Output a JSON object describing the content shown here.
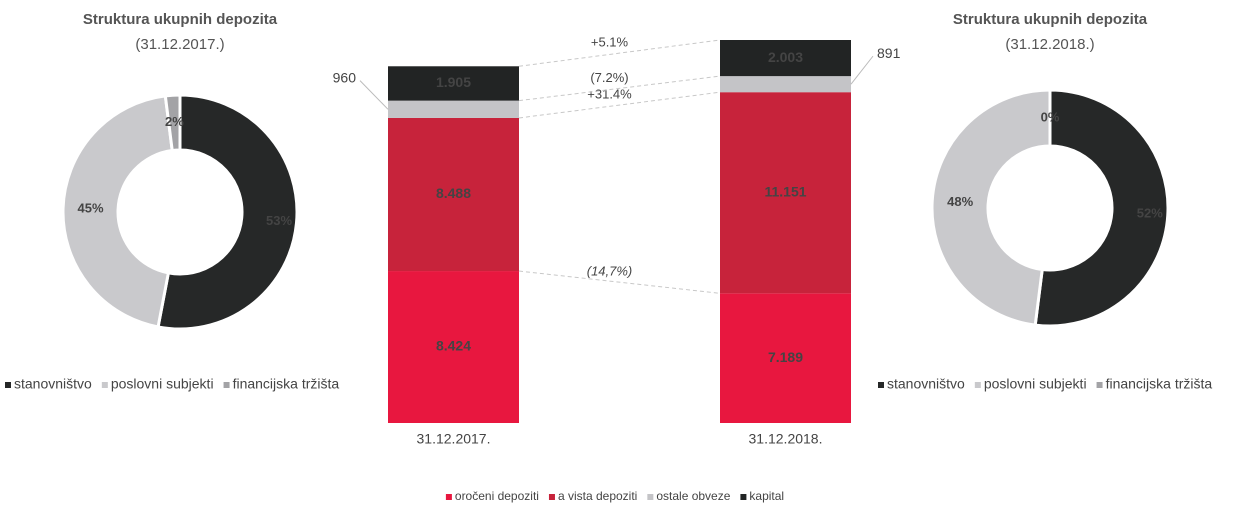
{
  "chart_data": [
    {
      "type": "pie",
      "title": "Struktura ukupnih depozita",
      "subtitle": "(31.12.2017.)",
      "categories": [
        "stanovništvo",
        "poslovni subjekti",
        "financijska tržišta"
      ],
      "values": [
        53,
        45,
        2
      ],
      "value_labels": [
        "53%",
        "45%",
        "2%"
      ],
      "colors": [
        "#262828",
        "#c9c9cc",
        "#a3a3a6"
      ],
      "legend": "bottom"
    },
    {
      "type": "bar",
      "stacked": true,
      "categories": [
        "31.12.2017.",
        "31.12.2018."
      ],
      "series": [
        {
          "name": "oročeni depoziti",
          "color": "#e8173f",
          "values": [
            8424,
            7189
          ],
          "value_labels": [
            "8.424",
            "7.189"
          ],
          "change_label": "(14,7%)"
        },
        {
          "name": "a vista depoziti",
          "color": "#c7233b",
          "values": [
            8488,
            11151
          ],
          "value_labels": [
            "8.488",
            "11.151"
          ],
          "change_label": "+31.4%"
        },
        {
          "name": "ostale obveze",
          "color": "#c4c4c7",
          "values": [
            960,
            891
          ],
          "value_labels": [
            "960",
            "891"
          ],
          "change_label": "(7.2%)"
        },
        {
          "name": "kapital",
          "color": "#222424",
          "values": [
            1905,
            2003
          ],
          "value_labels": [
            "1.905",
            "2.003"
          ],
          "change_label": "+5.1%"
        }
      ],
      "legend": "bottom"
    },
    {
      "type": "pie",
      "title": "Struktura ukupnih depozita",
      "subtitle": "(31.12.2018.)",
      "categories": [
        "stanovništvo",
        "poslovni subjekti",
        "financijska tržišta"
      ],
      "values": [
        52,
        48,
        0
      ],
      "value_labels": [
        "52%",
        "48%",
        "0%"
      ],
      "colors": [
        "#262828",
        "#c9c9cc",
        "#a3a3a6"
      ],
      "legend": "bottom"
    }
  ]
}
